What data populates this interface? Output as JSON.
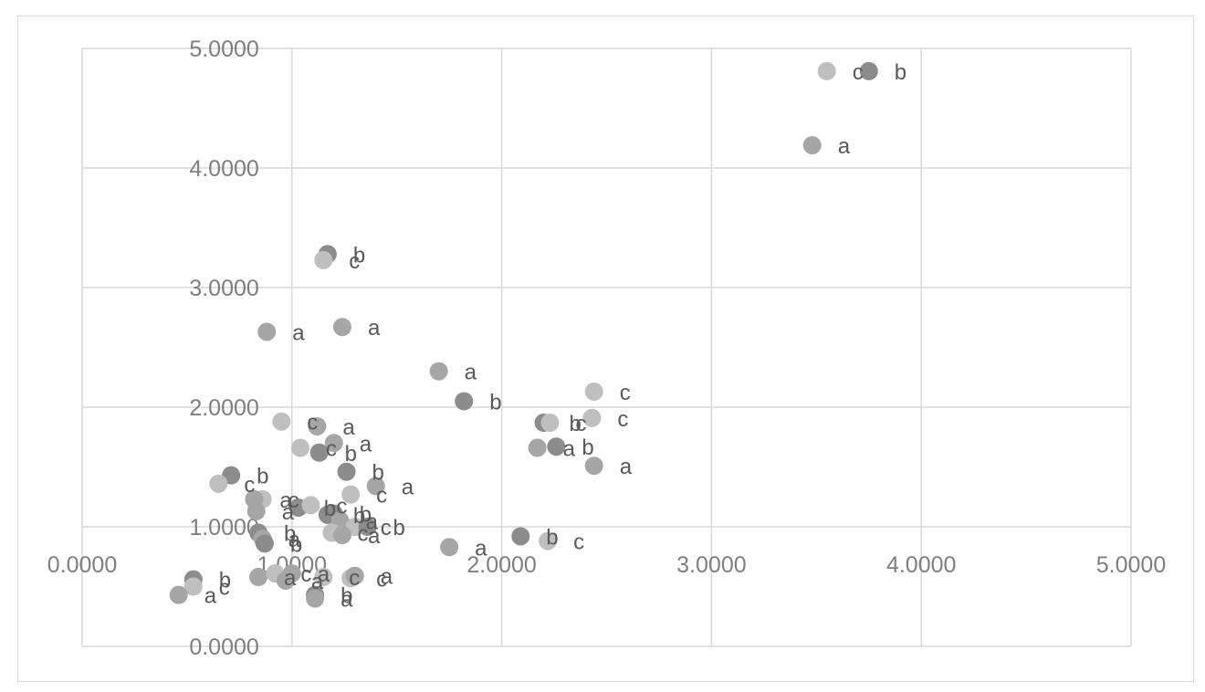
{
  "chart_data": {
    "type": "scatter",
    "title": "",
    "xlabel": "",
    "ylabel": "",
    "xlim": [
      0,
      5
    ],
    "ylim": [
      0,
      5
    ],
    "x_ticks": [
      "0.0000",
      "1.0000",
      "2.0000",
      "3.0000",
      "4.0000",
      "5.0000"
    ],
    "y_ticks": [
      "0.0000",
      "1.0000",
      "2.0000",
      "3.0000",
      "4.0000",
      "5.0000"
    ],
    "grid": true,
    "legend": "none",
    "marker_colors": [
      "#a6a6a6",
      "#bfbfbf",
      "#8c8c8c"
    ],
    "points": [
      {
        "x": 3.55,
        "y": 4.81,
        "label": "c"
      },
      {
        "x": 3.75,
        "y": 4.81,
        "label": "b"
      },
      {
        "x": 3.48,
        "y": 4.19,
        "label": "a"
      },
      {
        "x": 1.17,
        "y": 3.28,
        "label": "b"
      },
      {
        "x": 1.15,
        "y": 3.23,
        "label": "c"
      },
      {
        "x": 0.88,
        "y": 2.63,
        "label": "a"
      },
      {
        "x": 1.24,
        "y": 2.67,
        "label": "a"
      },
      {
        "x": 1.7,
        "y": 2.3,
        "label": "a"
      },
      {
        "x": 1.82,
        "y": 2.05,
        "label": "b"
      },
      {
        "x": 2.44,
        "y": 2.13,
        "label": "c"
      },
      {
        "x": 2.2,
        "y": 1.87,
        "label": "b"
      },
      {
        "x": 2.23,
        "y": 1.87,
        "label": "c"
      },
      {
        "x": 2.43,
        "y": 1.91,
        "label": "c"
      },
      {
        "x": 2.17,
        "y": 1.66,
        "label": "a"
      },
      {
        "x": 2.26,
        "y": 1.67,
        "label": "b"
      },
      {
        "x": 2.44,
        "y": 1.51,
        "label": "a"
      },
      {
        "x": 0.95,
        "y": 1.88,
        "label": "c"
      },
      {
        "x": 1.12,
        "y": 1.84,
        "label": "a"
      },
      {
        "x": 1.04,
        "y": 1.66,
        "label": "c"
      },
      {
        "x": 1.2,
        "y": 1.7,
        "label": "a"
      },
      {
        "x": 1.13,
        "y": 1.62,
        "label": "b"
      },
      {
        "x": 1.26,
        "y": 1.46,
        "label": "b"
      },
      {
        "x": 1.4,
        "y": 1.34,
        "label": "a"
      },
      {
        "x": 0.71,
        "y": 1.43,
        "label": "b"
      },
      {
        "x": 0.65,
        "y": 1.36,
        "label": "c"
      },
      {
        "x": 0.86,
        "y": 1.23,
        "label": "c"
      },
      {
        "x": 0.82,
        "y": 1.23,
        "label": "a"
      },
      {
        "x": 0.83,
        "y": 1.13,
        "label": "a"
      },
      {
        "x": 1.28,
        "y": 1.27,
        "label": "c"
      },
      {
        "x": 1.03,
        "y": 1.16,
        "label": "b"
      },
      {
        "x": 1.09,
        "y": 1.18,
        "label": "c"
      },
      {
        "x": 1.17,
        "y": 1.1,
        "label": "b"
      },
      {
        "x": 1.2,
        "y": 1.11,
        "label": "b"
      },
      {
        "x": 1.23,
        "y": 1.05,
        "label": "a"
      },
      {
        "x": 1.3,
        "y": 1.0,
        "label": "c"
      },
      {
        "x": 1.36,
        "y": 1.0,
        "label": "b"
      },
      {
        "x": 1.19,
        "y": 0.95,
        "label": "c"
      },
      {
        "x": 1.24,
        "y": 0.93,
        "label": "a"
      },
      {
        "x": 0.84,
        "y": 0.95,
        "label": "b"
      },
      {
        "x": 0.86,
        "y": 0.9,
        "label": "a"
      },
      {
        "x": 0.87,
        "y": 0.86,
        "label": "b"
      },
      {
        "x": 1.75,
        "y": 0.83,
        "label": "a"
      },
      {
        "x": 2.09,
        "y": 0.92,
        "label": "b"
      },
      {
        "x": 2.22,
        "y": 0.88,
        "label": "c"
      },
      {
        "x": 0.53,
        "y": 0.56,
        "label": "b"
      },
      {
        "x": 0.53,
        "y": 0.5,
        "label": "c"
      },
      {
        "x": 0.46,
        "y": 0.43,
        "label": "a"
      },
      {
        "x": 0.84,
        "y": 0.58,
        "label": "a"
      },
      {
        "x": 0.92,
        "y": 0.61,
        "label": "c"
      },
      {
        "x": 0.97,
        "y": 0.55,
        "label": "a"
      },
      {
        "x": 1.0,
        "y": 0.61,
        "label": "a"
      },
      {
        "x": 1.15,
        "y": 0.58,
        "label": "c"
      },
      {
        "x": 1.11,
        "y": 0.43,
        "label": "b"
      },
      {
        "x": 1.11,
        "y": 0.4,
        "label": "a"
      },
      {
        "x": 1.28,
        "y": 0.57,
        "label": "c"
      },
      {
        "x": 1.3,
        "y": 0.59,
        "label": "a"
      }
    ]
  }
}
